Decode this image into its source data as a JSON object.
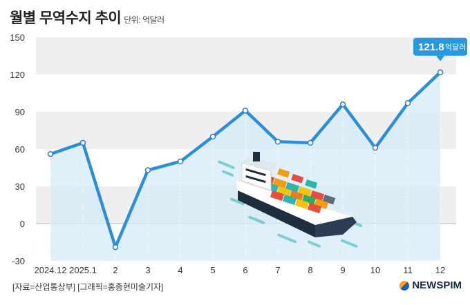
{
  "header": {
    "title": "월별 무역수지 추이",
    "unit": "단위: 억달러"
  },
  "footer": {
    "source": "[자료=산업통상부] [그래픽=홍종현미술기자]",
    "brand": "NEWSPIM"
  },
  "chart_data": {
    "type": "area",
    "categories": [
      "2024.12",
      "2025.1",
      "2",
      "3",
      "4",
      "5",
      "6",
      "7",
      "8",
      "9",
      "10",
      "11",
      "12"
    ],
    "values": [
      56,
      65,
      -19,
      43,
      50,
      70,
      91,
      66,
      65,
      96,
      61,
      97,
      121.8
    ],
    "ylim": [
      -30,
      150
    ],
    "yticks": [
      -30,
      0,
      30,
      60,
      90,
      120,
      150
    ],
    "grid": "alternating horizontal bands",
    "callout": {
      "value": "121.8",
      "unit": "억달러"
    },
    "colors": {
      "line": "#2b8fd8",
      "fill": "#d4ebf9",
      "callout": "#2799e0",
      "band": "#efefef"
    }
  }
}
